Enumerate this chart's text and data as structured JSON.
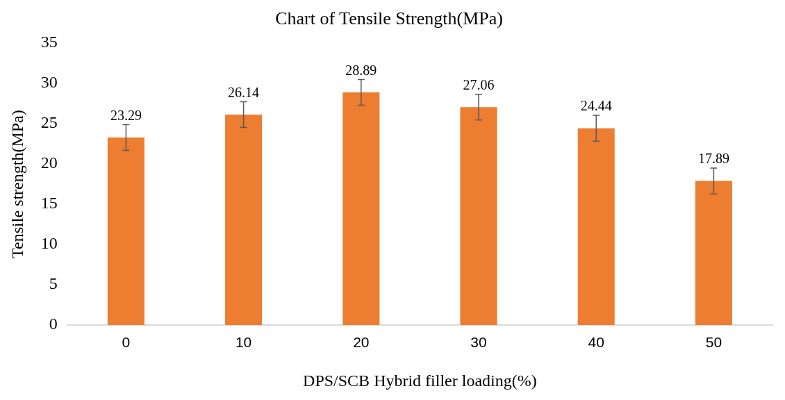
{
  "chart_data": {
    "type": "bar",
    "title": "Chart of Tensile Strength(MPa)",
    "xlabel": "DPS/SCB Hybrid filler loading(%)",
    "ylabel": "Tensile strength(MPa)",
    "categories": [
      "0",
      "10",
      "20",
      "30",
      "40",
      "50"
    ],
    "values": [
      23.29,
      26.14,
      28.89,
      27.06,
      24.44,
      17.89
    ],
    "errors": [
      1.6,
      1.6,
      1.6,
      1.6,
      1.6,
      1.6
    ],
    "color": "#ed7d31",
    "ylim": [
      0,
      35
    ],
    "yticks": [
      0,
      5,
      10,
      15,
      20,
      25,
      30,
      35
    ],
    "grid": false,
    "legend": false,
    "data_labels": true
  }
}
